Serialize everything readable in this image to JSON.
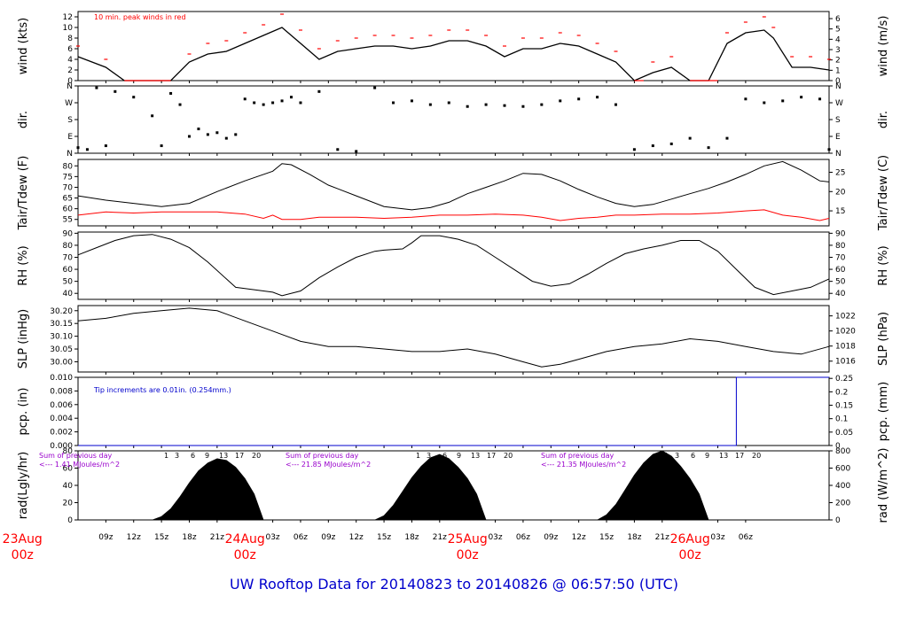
{
  "footer": {
    "title": "UW Rooftop Data for 20140823  to  20140826 @ 06:57:50  (UTC)"
  },
  "colors": {
    "series": "#000000",
    "peak": "#ff0000",
    "dewpoint": "#ff0000",
    "note_blue": "#0000cc",
    "note_purple": "#9900cc",
    "day_label": "#ff0000"
  },
  "chart_data": [
    {
      "id": "wind",
      "type": "line",
      "ylabel": "wind (kts)",
      "ylabel_right": "wind (m/s)",
      "ylim": [
        0,
        13
      ],
      "yticks": [
        "0",
        "2",
        "4",
        "6",
        "8",
        "10",
        "12"
      ],
      "yticks_right": [
        "0",
        "1",
        "2",
        "3",
        "4",
        "5",
        "6"
      ],
      "annotation": "10 min. peak winds in red",
      "series": [
        {
          "name": "wind speed",
          "color": "#000000",
          "x": [
            0,
            3,
            5,
            7,
            9,
            10,
            12,
            14,
            16,
            18,
            20,
            22,
            24,
            26,
            28,
            30,
            32,
            34,
            36,
            38,
            40,
            42,
            44,
            46,
            48,
            50,
            52,
            54,
            56,
            58,
            60,
            62,
            64,
            66,
            68,
            70,
            72,
            74,
            75,
            77,
            79,
            81
          ],
          "values": [
            4.5,
            2.5,
            0,
            0,
            0,
            0,
            3.5,
            5,
            5.5,
            7,
            8.5,
            10,
            7,
            4,
            5.5,
            6,
            6.5,
            6.5,
            6,
            6.5,
            7.5,
            7.5,
            6.5,
            4.5,
            6,
            6,
            7,
            6.5,
            5,
            3.5,
            0,
            1.5,
            2.5,
            0,
            0,
            7,
            9,
            9.5,
            8,
            2.5,
            2.5,
            2
          ]
        },
        {
          "name": "10 min. peak winds",
          "color": "#ff0000",
          "x": [
            0,
            3,
            5,
            7,
            9,
            10,
            12,
            14,
            16,
            18,
            20,
            22,
            24,
            26,
            28,
            30,
            32,
            34,
            36,
            38,
            40,
            42,
            44,
            46,
            48,
            50,
            52,
            54,
            56,
            58,
            60,
            62,
            64,
            66,
            68,
            70,
            72,
            74,
            75,
            77,
            79,
            81
          ],
          "values": [
            6.5,
            4,
            0,
            0,
            0,
            0,
            5,
            7,
            7.5,
            9,
            10.5,
            12.5,
            9.5,
            6,
            7.5,
            8,
            8.5,
            8.5,
            8,
            8.5,
            9.5,
            9.5,
            8.5,
            6.5,
            8,
            8,
            9,
            8.5,
            7,
            5.5,
            0,
            3.5,
            4.5,
            0,
            0,
            9,
            11,
            12,
            10,
            4.5,
            4.5,
            4
          ]
        }
      ]
    },
    {
      "id": "dir",
      "type": "scatter",
      "ylabel": "dir.",
      "ylabel_right": "dir.",
      "ylim": [
        0,
        360
      ],
      "yticks": [
        "N",
        "E",
        "S",
        "W",
        "N"
      ],
      "yticks_right": [
        "N",
        "E",
        "S",
        "W",
        "N"
      ],
      "series": [
        {
          "name": "wind direction",
          "color": "#000000",
          "x": [
            0,
            1,
            2,
            3,
            4,
            6,
            8,
            9,
            10,
            11,
            12,
            13,
            14,
            15,
            16,
            17,
            18,
            19,
            20,
            21,
            22,
            23,
            24,
            26,
            28,
            30,
            32,
            34,
            36,
            38,
            40,
            42,
            44,
            46,
            48,
            50,
            52,
            54,
            56,
            58,
            60,
            62,
            64,
            66,
            68,
            70,
            72,
            74,
            76,
            78,
            80,
            81
          ],
          "values": [
            30,
            20,
            350,
            40,
            330,
            300,
            200,
            40,
            320,
            260,
            90,
            130,
            100,
            110,
            80,
            100,
            290,
            270,
            260,
            270,
            280,
            300,
            270,
            330,
            20,
            10,
            350,
            270,
            280,
            260,
            270,
            250,
            260,
            255,
            250,
            260,
            280,
            290,
            300,
            260,
            20,
            40,
            50,
            80,
            30,
            80,
            290,
            270,
            280,
            300,
            290,
            20
          ]
        }
      ]
    },
    {
      "id": "temp",
      "type": "line",
      "ylabel": "Tair/Tdew (F)",
      "ylabel_right": "Tair/Tdew (C)",
      "ylim": [
        52,
        83
      ],
      "yticks": [
        "55",
        "60",
        "65",
        "70",
        "75",
        "80"
      ],
      "yticks_right": [
        "15",
        "20",
        "25"
      ],
      "series": [
        {
          "name": "air temperature",
          "color": "#000000",
          "x": [
            0,
            3,
            6,
            9,
            12,
            15,
            18,
            21,
            22,
            23,
            25,
            27,
            30,
            33,
            36,
            38,
            40,
            42,
            44,
            46,
            48,
            50,
            52,
            54,
            56,
            58,
            60,
            62,
            64,
            66,
            68,
            70,
            72,
            74,
            76,
            78,
            80,
            81
          ],
          "values": [
            66,
            64,
            62.5,
            61,
            62.5,
            68,
            73,
            77.5,
            81,
            80.5,
            76,
            71,
            66,
            61,
            59.5,
            60.5,
            63,
            67,
            70,
            73,
            76.5,
            76,
            73,
            69,
            65.5,
            62.5,
            61,
            62,
            64.5,
            67,
            69.5,
            72.5,
            76,
            80,
            82,
            78,
            73,
            72.5
          ]
        },
        {
          "name": "dew point",
          "color": "#ff0000",
          "x": [
            0,
            3,
            6,
            9,
            12,
            15,
            18,
            20,
            21,
            22,
            24,
            26,
            28,
            30,
            33,
            36,
            39,
            42,
            45,
            48,
            50,
            52,
            54,
            56,
            58,
            60,
            63,
            66,
            69,
            72,
            74,
            76,
            78,
            80,
            81
          ],
          "values": [
            57,
            58.5,
            58,
            58.5,
            58.5,
            58.5,
            57.5,
            55.5,
            57,
            55,
            55,
            56,
            56,
            56,
            55.5,
            56,
            57,
            57,
            57.5,
            57,
            56,
            54.5,
            55.5,
            56,
            57,
            57,
            57.5,
            57.5,
            58,
            59,
            59.5,
            57,
            56,
            54.5,
            55.5
          ]
        }
      ]
    },
    {
      "id": "rh",
      "type": "line",
      "ylabel": "RH (%)",
      "ylabel_right": "RH (%)",
      "ylim": [
        35,
        91
      ],
      "yticks": [
        "40",
        "50",
        "60",
        "70",
        "80",
        "90"
      ],
      "yticks_right": [
        "40",
        "50",
        "60",
        "70",
        "80",
        "90"
      ],
      "series": [
        {
          "name": "relative humidity",
          "color": "#000000",
          "x": [
            0,
            2,
            4,
            6,
            8,
            10,
            12,
            14,
            16,
            17,
            19,
            21,
            22,
            24,
            26,
            28,
            30,
            32,
            33,
            35,
            36,
            37,
            39,
            41,
            43,
            45,
            47,
            49,
            51,
            53,
            55,
            57,
            59,
            61,
            63,
            65,
            67,
            69,
            71,
            73,
            75,
            77,
            79,
            81
          ],
          "values": [
            72,
            78,
            84,
            88,
            89,
            85,
            78,
            66,
            52,
            45,
            43,
            41,
            38,
            42,
            53,
            62,
            70,
            75,
            76,
            77,
            82,
            88,
            88,
            85,
            80,
            70,
            60,
            50,
            46,
            48,
            56,
            65,
            73,
            77,
            80,
            84,
            84,
            75,
            60,
            45,
            39,
            42,
            45,
            52
          ]
        }
      ]
    },
    {
      "id": "slp",
      "type": "line",
      "ylabel": "SLP (inHg)",
      "ylabel_right": "SLP (hPa)",
      "ylim": [
        29.96,
        30.22
      ],
      "yticks": [
        "30.00",
        "30.05",
        "30.10",
        "30.15",
        "30.20"
      ],
      "yticks_right": [
        "1016",
        "1018",
        "1020",
        "1022"
      ],
      "series": [
        {
          "name": "sea level pressure",
          "color": "#000000",
          "x": [
            0,
            3,
            6,
            9,
            12,
            15,
            18,
            21,
            24,
            27,
            30,
            33,
            36,
            39,
            42,
            45,
            48,
            50,
            52,
            54,
            57,
            60,
            63,
            66,
            69,
            72,
            75,
            78,
            81
          ],
          "values": [
            30.16,
            30.17,
            30.19,
            30.2,
            30.21,
            30.2,
            30.16,
            30.12,
            30.08,
            30.06,
            30.06,
            30.05,
            30.04,
            30.04,
            30.05,
            30.03,
            30.0,
            29.98,
            29.99,
            30.01,
            30.04,
            30.06,
            30.07,
            30.09,
            30.08,
            30.06,
            30.04,
            30.03,
            30.06
          ]
        }
      ]
    },
    {
      "id": "pcp",
      "type": "line",
      "ylabel": "pcp. (in)",
      "ylabel_right": "pcp. (mm)",
      "ylim": [
        0,
        0.01
      ],
      "yticks": [
        "0.000",
        "0.002",
        "0.004",
        "0.006",
        "0.008",
        "0.010"
      ],
      "yticks_right": [
        "0",
        "0.05",
        "0.1",
        "0.15",
        "0.2",
        "0.25"
      ],
      "annotation": "Tip increments are 0.01in. (0.254mm.)",
      "series": [
        {
          "name": "precipitation",
          "color": "#0000cc",
          "x": [
            0,
            71,
            71,
            81
          ],
          "values": [
            0,
            0,
            0.01,
            0.01
          ]
        }
      ]
    },
    {
      "id": "rad",
      "type": "area",
      "ylabel": "rad(Lgly/hr)",
      "ylabel_right": "rad (W/m^2)",
      "ylim": [
        0,
        80
      ],
      "yticks": [
        "0",
        "20",
        "40",
        "60",
        "80"
      ],
      "yticks_right": [
        "0",
        "200",
        "400",
        "600",
        "800"
      ],
      "series": [
        {
          "name": "solar radiation",
          "color": "#000000",
          "x": [
            0,
            7,
            8,
            9,
            10,
            11,
            12,
            13,
            14,
            15,
            16,
            17,
            18,
            19,
            20,
            31,
            32,
            33,
            34,
            35,
            36,
            37,
            38,
            39,
            40,
            41,
            42,
            43,
            44,
            55,
            56,
            57,
            58,
            59,
            60,
            61,
            62,
            63,
            64,
            65,
            66,
            67,
            68,
            81
          ],
          "values": [
            0,
            0,
            0,
            4,
            13,
            27,
            43,
            57,
            66,
            71,
            69,
            61,
            48,
            30,
            0,
            0,
            0,
            5,
            17,
            33,
            49,
            62,
            72,
            76,
            71,
            61,
            48,
            30,
            0,
            0,
            0,
            6,
            18,
            35,
            52,
            66,
            76,
            80,
            74,
            62,
            48,
            30,
            0,
            0
          ]
        }
      ],
      "day_notes": [
        {
          "line1": "Sum of previous day",
          "line2": "<--- 1.41 MJoules/m^2"
        },
        {
          "line1": "Sum of previous day",
          "line2": "<--- 21.85 MJoules/m^2"
        },
        {
          "line1": "Sum of previous day",
          "line2": "<--- 21.35 MJoules/m^2"
        }
      ],
      "hour_labels": [
        "1",
        "3",
        "6",
        "9",
        "13",
        "17",
        "20"
      ]
    }
  ],
  "time_axis": {
    "unit": "hours",
    "xlim": [
      0,
      81
    ],
    "ticks": [
      {
        "x": 3,
        "label": "09z"
      },
      {
        "x": 6,
        "label": "12z"
      },
      {
        "x": 9,
        "label": "15z"
      },
      {
        "x": 12,
        "label": "18z"
      },
      {
        "x": 15,
        "label": "21z"
      },
      {
        "x": 21,
        "label": "03z"
      },
      {
        "x": 24,
        "label": "06z"
      },
      {
        "x": 27,
        "label": "09z"
      },
      {
        "x": 30,
        "label": "12z"
      },
      {
        "x": 33,
        "label": "15z"
      },
      {
        "x": 36,
        "label": "18z"
      },
      {
        "x": 39,
        "label": "21z"
      },
      {
        "x": 45,
        "label": "03z"
      },
      {
        "x": 48,
        "label": "06z"
      },
      {
        "x": 51,
        "label": "09z"
      },
      {
        "x": 54,
        "label": "12z"
      },
      {
        "x": 57,
        "label": "15z"
      },
      {
        "x": 60,
        "label": "18z"
      },
      {
        "x": 63,
        "label": "21z"
      },
      {
        "x": 69,
        "label": "03z"
      },
      {
        "x": 72,
        "label": "06z"
      }
    ],
    "days": [
      {
        "x": -6,
        "date": "23Aug",
        "hour": "00z"
      },
      {
        "x": 18,
        "date": "24Aug",
        "hour": "00z"
      },
      {
        "x": 42,
        "date": "25Aug",
        "hour": "00z"
      },
      {
        "x": 66,
        "date": "26Aug",
        "hour": "00z"
      }
    ]
  }
}
